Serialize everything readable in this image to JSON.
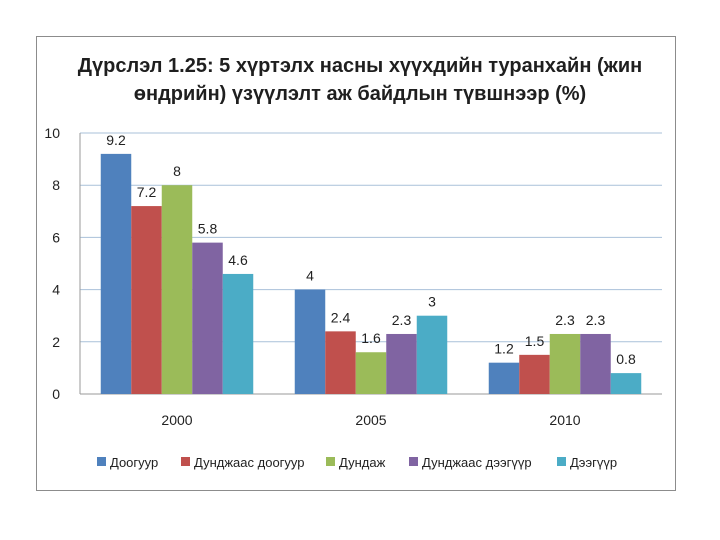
{
  "chart_data": {
    "type": "bar",
    "title": "Дүрслэл 1.25: 5 хүртэлх насны хүүхдийн туранхайн (жин өндрийн) үзүүлэлт аж байдлын түвшнээр (%)",
    "categories": [
      "2000",
      "2005",
      "2010"
    ],
    "series": [
      {
        "name": "Доогуур",
        "values": [
          9.2,
          4,
          1.2
        ],
        "labels": [
          "9.2",
          "4",
          "1.2"
        ],
        "color": "#4f81bd"
      },
      {
        "name": "Дунджаас доогуур",
        "values": [
          7.2,
          2.4,
          1.5
        ],
        "labels": [
          "7.2",
          "2.4",
          "1.5"
        ],
        "color": "#c0504d"
      },
      {
        "name": "Дундаж",
        "values": [
          8,
          1.6,
          2.3
        ],
        "labels": [
          "8",
          "1.6",
          "2.3"
        ],
        "color": "#9bbb59"
      },
      {
        "name": "Дунджаас дээгүүр",
        "values": [
          5.8,
          2.3,
          2.3
        ],
        "labels": [
          "5.8",
          "2.3",
          "2.3"
        ],
        "color": "#8064a2"
      },
      {
        "name": "Дээгүүр",
        "values": [
          4.6,
          3,
          0.8
        ],
        "labels": [
          "4.6",
          "3",
          "0.8"
        ],
        "color": "#4bacc6"
      }
    ],
    "ylim": [
      0,
      10
    ],
    "yticks": [
      "0",
      "2",
      "4",
      "6",
      "8",
      "10"
    ],
    "grid": true,
    "legend": "bottom"
  }
}
